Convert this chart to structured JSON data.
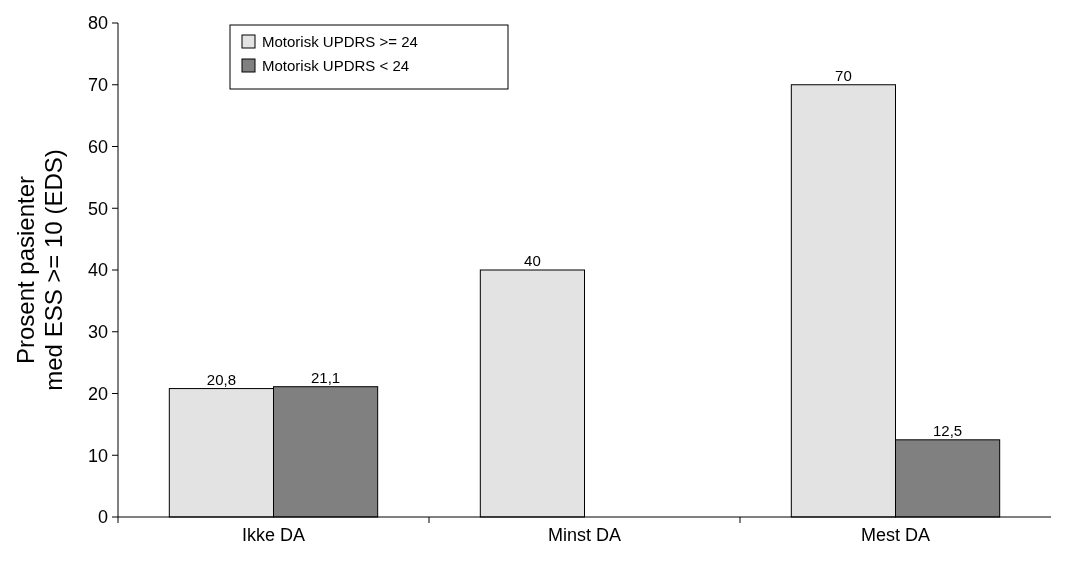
{
  "chart_data": {
    "type": "bar",
    "ylabel": "Prosent pasienter\nmed ESS >= 10 (EDS)",
    "categories": [
      "Ikke DA",
      "Minst DA",
      "Mest DA"
    ],
    "series": [
      {
        "name": "Motorisk UPDRS >= 24",
        "color": "#e3e3e3",
        "values": [
          20.8,
          40,
          70
        ],
        "value_labels": [
          "20,8",
          "40",
          "70"
        ]
      },
      {
        "name": "Motorisk UPDRS < 24",
        "color": "#808080",
        "values": [
          21.1,
          null,
          12.5
        ],
        "value_labels": [
          "21,1",
          null,
          "12,5"
        ]
      }
    ],
    "ylim": [
      0,
      80
    ],
    "yticks": [
      0,
      10,
      20,
      30,
      40,
      50,
      60,
      70,
      80
    ],
    "legend": "top left",
    "grid": false
  }
}
